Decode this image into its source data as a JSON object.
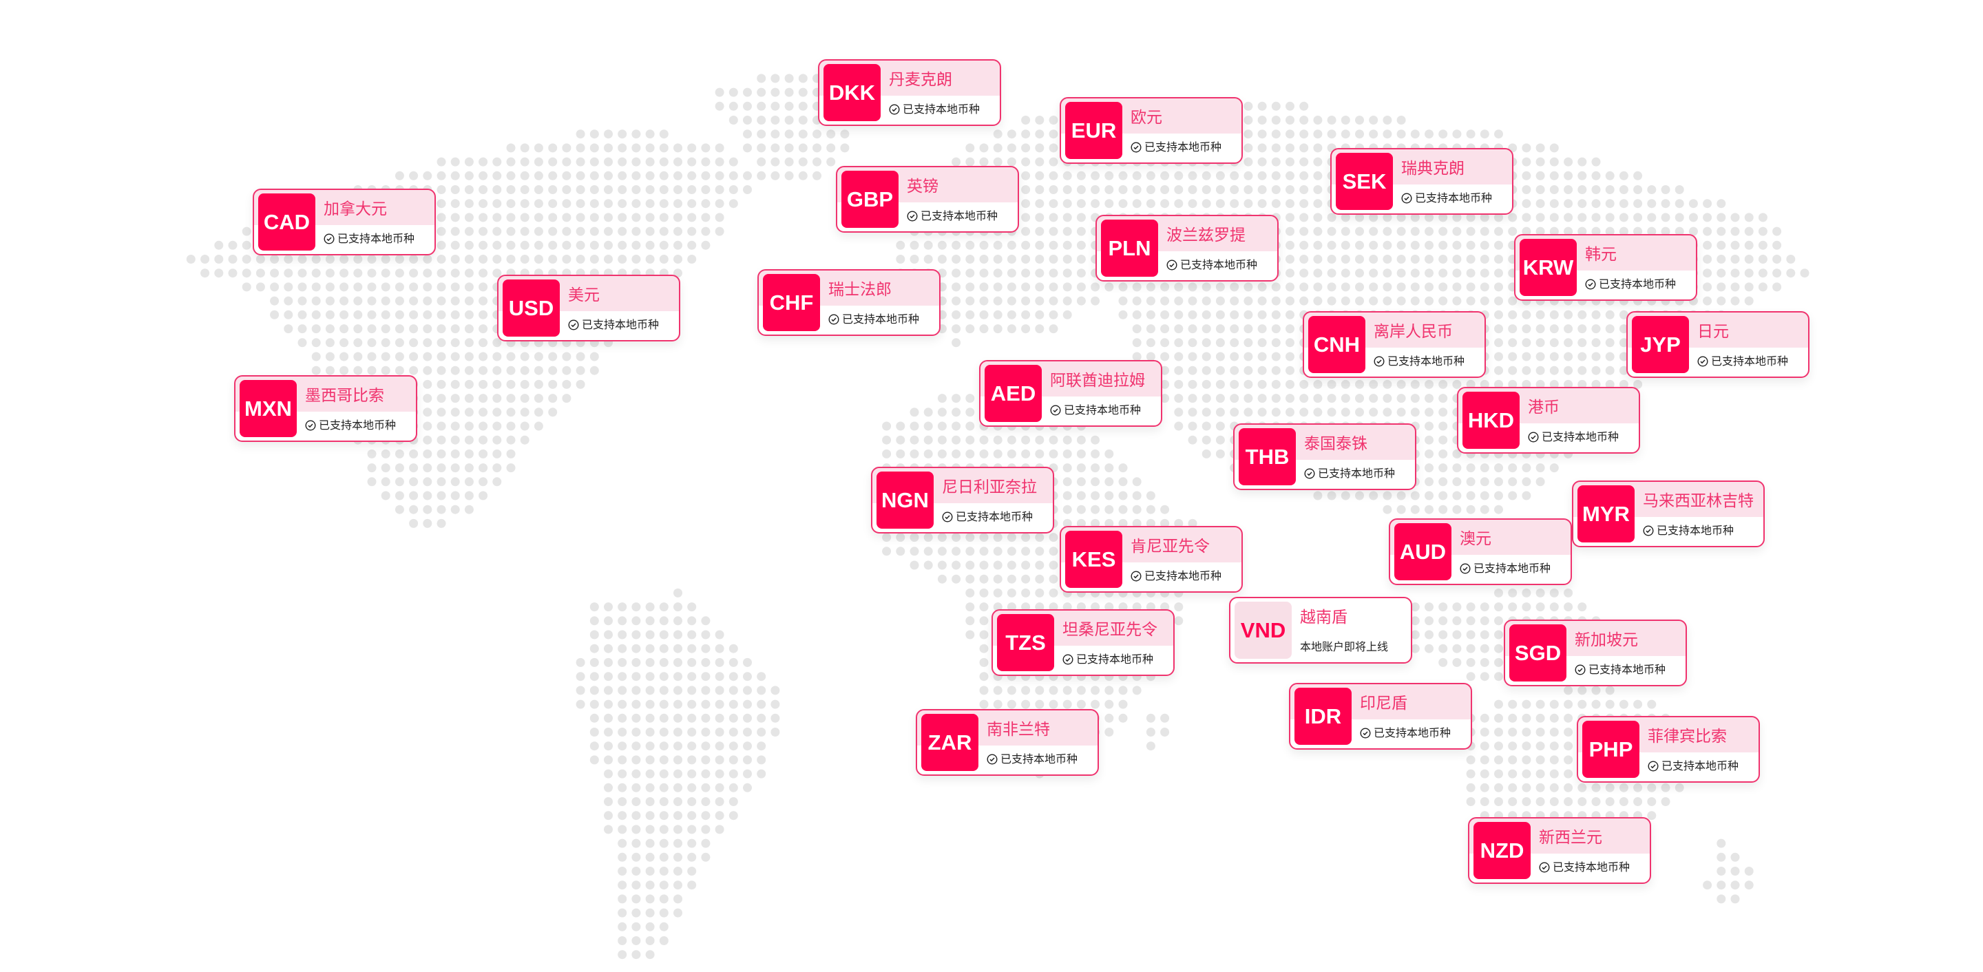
{
  "colors": {
    "accent": "#ff004f",
    "name": "#f0336e",
    "header_bg": "#fbe1ea",
    "dot": "#e5e5e5"
  },
  "status_supported": "已支持本地币种",
  "currencies": [
    {
      "code": "DKK",
      "name": "丹麦克朗",
      "status": "已支持本地币种",
      "icon": "check-circle-icon"
    },
    {
      "code": "EUR",
      "name": "欧元",
      "status": "已支持本地币种",
      "icon": "check-circle-icon"
    },
    {
      "code": "CAD",
      "name": "加拿大元",
      "status": "已支持本地币种",
      "icon": "check-circle-icon"
    },
    {
      "code": "GBP",
      "name": "英镑",
      "status": "已支持本地币种",
      "icon": "check-circle-icon"
    },
    {
      "code": "SEK",
      "name": "瑞典克朗",
      "status": "已支持本地币种",
      "icon": "check-circle-icon"
    },
    {
      "code": "PLN",
      "name": "波兰兹罗提",
      "status": "已支持本地币种",
      "icon": "check-circle-icon"
    },
    {
      "code": "USD",
      "name": "美元",
      "status": "已支持本地币种",
      "icon": "check-circle-icon"
    },
    {
      "code": "CHF",
      "name": "瑞士法郎",
      "status": "已支持本地币种",
      "icon": "check-circle-icon"
    },
    {
      "code": "KRW",
      "name": "韩元",
      "status": "已支持本地币种",
      "icon": "check-circle-icon"
    },
    {
      "code": "CNH",
      "name": "离岸人民币",
      "status": "已支持本地币种",
      "icon": "check-circle-icon"
    },
    {
      "code": "JYP",
      "name": "日元",
      "status": "已支持本地币种",
      "icon": "check-circle-icon"
    },
    {
      "code": "AED",
      "name": "阿联酋迪拉姆",
      "status": "已支持本地币种",
      "icon": "check-circle-icon"
    },
    {
      "code": "MXN",
      "name": "墨西哥比索",
      "status": "已支持本地币种",
      "icon": "check-circle-icon"
    },
    {
      "code": "HKD",
      "name": "港币",
      "status": "已支持本地币种",
      "icon": "check-circle-icon"
    },
    {
      "code": "THB",
      "name": "泰国泰铢",
      "status": "已支持本地币种",
      "icon": "check-circle-icon"
    },
    {
      "code": "NGN",
      "name": "尼日利亚奈拉",
      "status": "已支持本地币种",
      "icon": "check-circle-icon"
    },
    {
      "code": "MYR",
      "name": "马来西亚林吉特",
      "status": "已支持本地币种",
      "icon": "check-circle-icon"
    },
    {
      "code": "KES",
      "name": "肯尼亚先令",
      "status": "已支持本地币种",
      "icon": "check-circle-icon"
    },
    {
      "code": "AUD",
      "name": "澳元",
      "status": "已支持本地币种",
      "icon": "check-circle-icon"
    },
    {
      "code": "VND",
      "name": "越南盾",
      "status": "本地账户即将上线",
      "icon": ""
    },
    {
      "code": "TZS",
      "name": "坦桑尼亚先令",
      "status": "已支持本地币种",
      "icon": "check-circle-icon"
    },
    {
      "code": "SGD",
      "name": "新加坡元",
      "status": "已支持本地币种",
      "icon": "check-circle-icon"
    },
    {
      "code": "IDR",
      "name": "印尼盾",
      "status": "已支持本地币种",
      "icon": "check-circle-icon"
    },
    {
      "code": "ZAR",
      "name": "南非兰特",
      "status": "已支持本地币种",
      "icon": "check-circle-icon"
    },
    {
      "code": "PHP",
      "name": "菲律宾比索",
      "status": "已支持本地币种",
      "icon": "check-circle-icon"
    },
    {
      "code": "NZD",
      "name": "新西兰元",
      "status": "已支持本地币种",
      "icon": "check-circle-icon"
    }
  ]
}
